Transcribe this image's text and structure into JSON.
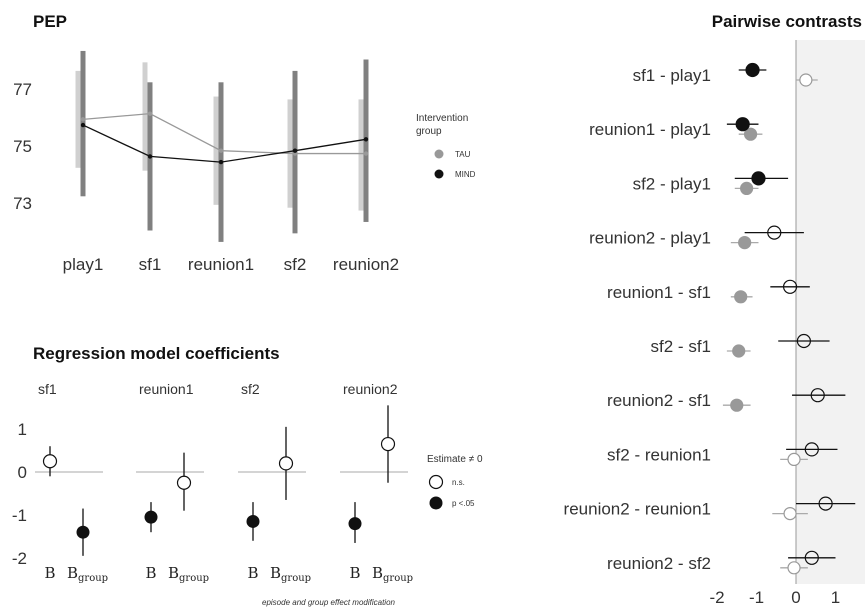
{
  "colors": {
    "tau": "#999999",
    "mind": "#111111",
    "tau_bar": "#d0d0d0",
    "mind_bar": "#808080",
    "zero": "#bbbbbb",
    "panel_bg": "#f2f2f2",
    "zero_line": "#999999"
  },
  "chart_data": [
    {
      "type": "line",
      "title": "PEP",
      "categories": [
        "play1",
        "sf1",
        "reunion1",
        "sf2",
        "reunion2"
      ],
      "ylim": [
        71.5,
        78.5
      ],
      "y_ticks": [
        "73",
        "75",
        "77"
      ],
      "series": [
        {
          "name": "TAU",
          "values": [
            75.9,
            76.1,
            74.8,
            74.7,
            74.7
          ],
          "low": [
            74.2,
            74.1,
            72.9,
            72.8,
            72.7
          ],
          "high": [
            77.6,
            77.9,
            76.7,
            76.6,
            76.6
          ]
        },
        {
          "name": "MIND",
          "values": [
            75.7,
            74.6,
            74.4,
            74.8,
            75.2
          ],
          "low": [
            73.2,
            72.0,
            71.6,
            71.9,
            72.3
          ],
          "high": [
            78.3,
            77.2,
            77.2,
            77.6,
            78.0
          ]
        }
      ],
      "legend": {
        "title_line1": "Intervention",
        "title_line2": "group",
        "position": "right",
        "items": [
          "TAU",
          "MIND"
        ]
      }
    },
    {
      "type": "scatter",
      "title": "Regression model coefficients",
      "ylim": [
        -2.2,
        1.6
      ],
      "y_ticks": [
        "1",
        "0",
        "-1",
        "-2"
      ],
      "x_tick_labels": {
        "b": "B",
        "bg_main": "B",
        "bg_sub": "group"
      },
      "footnote": "episode and group effect modification",
      "panels": [
        {
          "name": "sf1",
          "points": [
            {
              "est": 0.25,
              "low": -0.1,
              "high": 0.6,
              "sig": false
            },
            {
              "est": -1.4,
              "low": -1.95,
              "high": -0.85,
              "sig": true
            }
          ]
        },
        {
          "name": "reunion1",
          "points": [
            {
              "est": -1.05,
              "low": -1.4,
              "high": -0.7,
              "sig": true
            },
            {
              "est": -0.25,
              "low": -0.9,
              "high": 0.45,
              "sig": false
            }
          ]
        },
        {
          "name": "sf2",
          "points": [
            {
              "est": -1.15,
              "low": -1.6,
              "high": -0.7,
              "sig": true
            },
            {
              "est": 0.2,
              "low": -0.65,
              "high": 1.05,
              "sig": false
            }
          ]
        },
        {
          "name": "reunion2",
          "points": [
            {
              "est": -1.2,
              "low": -1.65,
              "high": -0.7,
              "sig": true
            },
            {
              "est": 0.65,
              "low": -0.25,
              "high": 1.55,
              "sig": false
            }
          ]
        }
      ],
      "legend": {
        "title": "Estimate ≠ 0",
        "items": [
          "n.s.",
          "p <.05"
        ],
        "position": "right"
      }
    },
    {
      "type": "scatter",
      "title": "Pairwise contrasts",
      "xlim": [
        -2.5,
        1.75
      ],
      "x_ticks": [
        "-2",
        "-1",
        "0",
        "1"
      ],
      "rows": [
        {
          "label": "sf1 - play1",
          "mind": {
            "est": -1.1,
            "low": -1.45,
            "high": -0.75
          },
          "tau": {
            "est": 0.25,
            "low": 0.0,
            "high": 0.55
          }
        },
        {
          "label": "reunion1 - play1",
          "mind": {
            "est": -1.35,
            "low": -1.75,
            "high": -0.95
          },
          "tau": {
            "est": -1.15,
            "low": -1.45,
            "high": -0.85
          }
        },
        {
          "label": "sf2 - play1",
          "mind": {
            "est": -0.95,
            "low": -1.55,
            "high": -0.2
          },
          "tau": {
            "est": -1.25,
            "low": -1.55,
            "high": -0.95
          }
        },
        {
          "label": "reunion2 - play1",
          "mind": {
            "est": -0.55,
            "low": -1.3,
            "high": 0.2
          },
          "tau": {
            "est": -1.3,
            "low": -1.65,
            "high": -0.95
          }
        },
        {
          "label": "reunion1 - sf1",
          "mind": {
            "est": -0.15,
            "low": -0.65,
            "high": 0.35
          },
          "tau": {
            "est": -1.4,
            "low": -1.65,
            "high": -1.1
          }
        },
        {
          "label": "sf2 - sf1",
          "mind": {
            "est": 0.2,
            "low": -0.45,
            "high": 0.85
          },
          "tau": {
            "est": -1.45,
            "low": -1.75,
            "high": -1.15
          }
        },
        {
          "label": "reunion2 - sf1",
          "mind": {
            "est": 0.55,
            "low": -0.1,
            "high": 1.25
          },
          "tau": {
            "est": -1.5,
            "low": -1.85,
            "high": -1.15
          }
        },
        {
          "label": "sf2 - reunion1",
          "mind": {
            "est": 0.4,
            "low": -0.25,
            "high": 1.05
          },
          "tau": {
            "est": -0.05,
            "low": -0.4,
            "high": 0.3
          }
        },
        {
          "label": "reunion2 - reunion1",
          "mind": {
            "est": 0.75,
            "low": 0.0,
            "high": 1.5
          },
          "tau": {
            "est": -0.15,
            "low": -0.6,
            "high": 0.3
          }
        },
        {
          "label": "reunion2 - sf2",
          "mind": {
            "est": 0.4,
            "low": -0.2,
            "high": 1.0
          },
          "tau": {
            "est": -0.05,
            "low": -0.4,
            "high": 0.3
          }
        }
      ]
    }
  ]
}
